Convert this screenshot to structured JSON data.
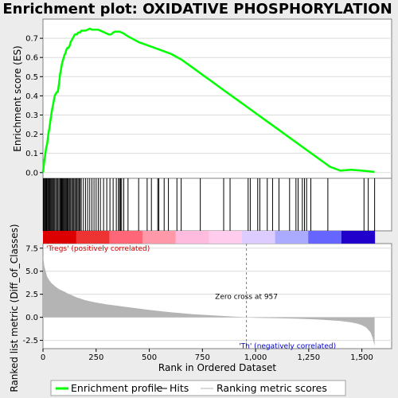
{
  "chart_data": {
    "type": "line",
    "title": "Enrichment plot: OXIDATIVE PHOSPHORYLATION",
    "xlabel": "Rank in Ordered Dataset",
    "xlim": [
      0,
      1640
    ],
    "x_ticks": [
      "0",
      "250",
      "500",
      "750",
      "1,000",
      "1,250",
      "1,500"
    ],
    "x_tick_values": [
      0,
      250,
      500,
      750,
      1000,
      1250,
      1500
    ],
    "es_panel": {
      "ylabel": "Enrichment score (ES)",
      "ylim": [
        -0.03,
        0.8
      ],
      "y_ticks": [
        "0.0",
        "0.1",
        "0.2",
        "0.3",
        "0.4",
        "0.5",
        "0.6",
        "0.7"
      ],
      "y_tick_values": [
        0,
        0.1,
        0.2,
        0.3,
        0.4,
        0.5,
        0.6,
        0.7
      ],
      "series": {
        "color": "#00ff00",
        "x": [
          0,
          5,
          10,
          15,
          20,
          25,
          30,
          35,
          40,
          45,
          50,
          55,
          60,
          65,
          70,
          75,
          80,
          85,
          90,
          95,
          100,
          105,
          110,
          115,
          120,
          125,
          130,
          135,
          140,
          145,
          150,
          155,
          160,
          165,
          170,
          175,
          180,
          190,
          200,
          210,
          220,
          230,
          240,
          250,
          260,
          270,
          280,
          290,
          300,
          310,
          320,
          330,
          340,
          350,
          360,
          370,
          380,
          400,
          450,
          500,
          550,
          600,
          650,
          700,
          750,
          800,
          850,
          900,
          950,
          1000,
          1050,
          1100,
          1150,
          1200,
          1250,
          1300,
          1350,
          1400,
          1450,
          1500,
          1530,
          1550,
          1560
        ],
        "y": [
          0.0,
          0.05,
          0.09,
          0.13,
          0.15,
          0.2,
          0.23,
          0.27,
          0.31,
          0.34,
          0.37,
          0.4,
          0.41,
          0.42,
          0.42,
          0.46,
          0.51,
          0.54,
          0.57,
          0.59,
          0.61,
          0.62,
          0.64,
          0.65,
          0.65,
          0.66,
          0.68,
          0.69,
          0.7,
          0.71,
          0.72,
          0.72,
          0.72,
          0.73,
          0.73,
          0.73,
          0.74,
          0.74,
          0.74,
          0.745,
          0.75,
          0.745,
          0.745,
          0.745,
          0.745,
          0.74,
          0.735,
          0.73,
          0.725,
          0.72,
          0.72,
          0.73,
          0.735,
          0.735,
          0.735,
          0.73,
          0.725,
          0.71,
          0.68,
          0.66,
          0.64,
          0.62,
          0.59,
          0.55,
          0.51,
          0.47,
          0.43,
          0.39,
          0.35,
          0.31,
          0.27,
          0.23,
          0.19,
          0.15,
          0.11,
          0.07,
          0.03,
          0.01,
          0.015,
          0.01,
          0.007,
          0.004,
          0.003
        ]
      }
    },
    "hits_panel": {
      "hit_ranks": [
        2,
        5,
        8,
        12,
        15,
        18,
        22,
        26,
        30,
        34,
        38,
        42,
        46,
        50,
        55,
        60,
        65,
        70,
        75,
        80,
        84,
        88,
        92,
        96,
        100,
        104,
        108,
        112,
        116,
        120,
        125,
        130,
        135,
        140,
        145,
        150,
        155,
        160,
        165,
        170,
        175,
        180,
        190,
        200,
        210,
        220,
        230,
        240,
        250,
        260,
        270,
        285,
        300,
        315,
        330,
        345,
        355,
        360,
        365,
        370,
        380,
        400,
        450,
        490,
        510,
        540,
        545,
        570,
        590,
        630,
        650,
        740,
        850,
        880,
        965,
        975,
        1010,
        1020,
        1055,
        1080,
        1110,
        1160,
        1190,
        1200,
        1220,
        1230,
        1240,
        1260,
        1340,
        1510,
        1530,
        1560
      ]
    },
    "gradient_colors": [
      "#dd0000",
      "#ee3333",
      "#ff6677",
      "#ff99aa",
      "#ffbbdd",
      "#ffccee",
      "#ddccff",
      "#aaaaff",
      "#6666ff",
      "#2200cc"
    ],
    "metric_panel": {
      "ylabel": "Ranked list metric (Diff_of_Classes)",
      "ylim": [
        -3.4,
        8.0
      ],
      "y_ticks": [
        "7.5",
        "5.0",
        "2.5",
        "0.0",
        "-2.5"
      ],
      "y_tick_values": [
        7.5,
        5.0,
        2.5,
        0.0,
        -2.5
      ],
      "fill_color": "#b4b4b4",
      "x": [
        0,
        3,
        6,
        10,
        15,
        20,
        30,
        40,
        50,
        60,
        70,
        80,
        100,
        120,
        140,
        160,
        180,
        200,
        250,
        300,
        400,
        500,
        600,
        700,
        800,
        900,
        957,
        1000,
        1100,
        1200,
        1300,
        1400,
        1450,
        1480,
        1500,
        1520,
        1540,
        1550,
        1560
      ],
      "values": [
        6.8,
        6.2,
        5.6,
        5.2,
        4.8,
        4.4,
        4.0,
        3.7,
        3.5,
        3.3,
        3.15,
        3.0,
        2.8,
        2.55,
        2.35,
        2.15,
        2.0,
        1.85,
        1.6,
        1.4,
        1.1,
        0.8,
        0.55,
        0.35,
        0.2,
        0.08,
        0.0,
        -0.05,
        -0.1,
        -0.15,
        -0.25,
        -0.4,
        -0.55,
        -0.7,
        -0.85,
        -1.1,
        -1.6,
        -2.2,
        -3.1
      ],
      "zero_cross_rank": 957,
      "zero_cross_label": "Zero cross at 957",
      "pos_label": "'Tregs' (positively correlated)",
      "neg_label": "'Th' (negatively correlated)"
    },
    "legend": {
      "items": [
        {
          "label": "Enrichment profile",
          "color": "#00ff00"
        },
        {
          "label": "Hits",
          "color": "#000000"
        },
        {
          "label": "Ranking metric scores",
          "color": "#b4b4b4"
        }
      ],
      "placement": "bottom"
    }
  }
}
